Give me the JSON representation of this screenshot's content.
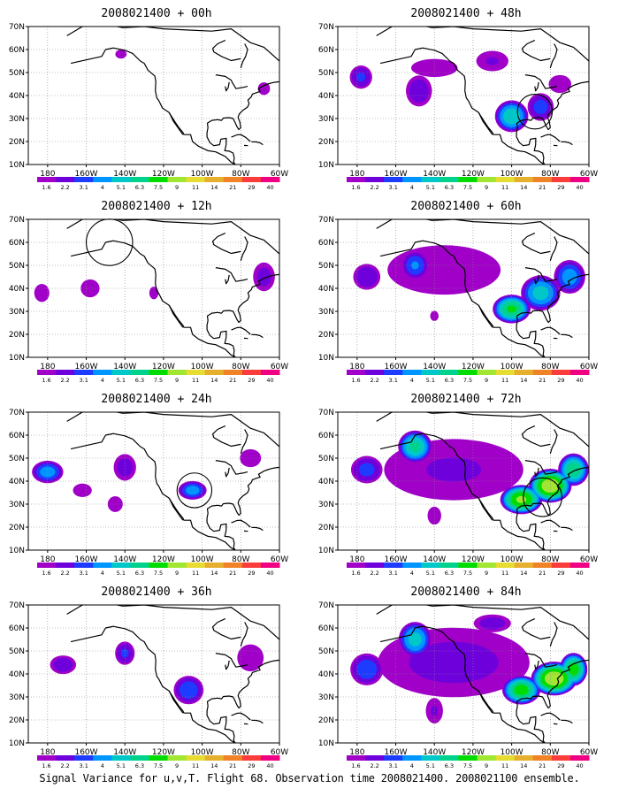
{
  "figure": {
    "caption": "Signal Variance for u,v,T. Flight 68. Observation time 2008021400. 2008021100 ensemble."
  },
  "colorbar": {
    "labels": [
      "1.6",
      "2.2",
      "3.1",
      "4",
      "5.1",
      "6.3",
      "7.5",
      "9",
      "11",
      "14",
      "21",
      "29",
      "40"
    ],
    "colors": [
      "#a000c8",
      "#6e00dc",
      "#1e3cff",
      "#0096ff",
      "#00c8c8",
      "#00d28c",
      "#00dc00",
      "#a0e632",
      "#e6dc32",
      "#e6af2d",
      "#f08228",
      "#fa3c3c",
      "#f00082"
    ]
  },
  "chart_data": [
    {
      "type": "heatmap",
      "title": "2008021400 + 00h",
      "x_ticks": [
        "180",
        "160W",
        "140W",
        "120W",
        "100W",
        "80W",
        "60W"
      ],
      "y_ticks": [
        "10N",
        "20N",
        "30N",
        "40N",
        "50N",
        "60N",
        "70N"
      ],
      "xlim": [
        -190,
        -60
      ],
      "ylim": [
        10,
        70
      ],
      "grid": true,
      "blobs": [
        {
          "lon": -145,
          "lat": 40,
          "rx": 18,
          "ry": 7,
          "v": 1.0
        },
        {
          "lon": -183,
          "lat": 35,
          "rx": 7,
          "ry": 5,
          "v": 1.0
        },
        {
          "lon": -142,
          "lat": 58,
          "rx": 6,
          "ry": 4,
          "v": 2.0
        },
        {
          "lon": -127,
          "lat": 56,
          "rx": 4,
          "ry": 3,
          "v": 1.0
        },
        {
          "lon": -68,
          "lat": 43,
          "rx": 8,
          "ry": 7,
          "v": 1.8
        }
      ],
      "circles": []
    },
    {
      "type": "heatmap",
      "title": "2008021400 + 12h",
      "x_ticks": [
        "180",
        "160W",
        "140W",
        "120W",
        "100W",
        "80W",
        "60W"
      ],
      "y_ticks": [
        "10N",
        "20N",
        "30N",
        "40N",
        "50N",
        "60N",
        "70N"
      ],
      "xlim": [
        -190,
        -60
      ],
      "ylim": [
        10,
        70
      ],
      "grid": true,
      "blobs": [
        {
          "lon": -183,
          "lat": 38,
          "rx": 8,
          "ry": 8,
          "v": 2.0
        },
        {
          "lon": -158,
          "lat": 40,
          "rx": 10,
          "ry": 8,
          "v": 2.0
        },
        {
          "lon": -125,
          "lat": 38,
          "rx": 6,
          "ry": 7,
          "v": 1.8
        },
        {
          "lon": -143,
          "lat": 57,
          "rx": 10,
          "ry": 6,
          "v": 1.0
        },
        {
          "lon": -68,
          "lat": 45,
          "rx": 9,
          "ry": 10,
          "v": 2.5
        },
        {
          "lon": -158,
          "lat": 30,
          "rx": 3,
          "ry": 2,
          "v": 1.0
        }
      ],
      "circles": [
        {
          "lon": -148,
          "lat": 60,
          "r": 12
        }
      ]
    },
    {
      "type": "heatmap",
      "title": "2008021400 + 24h",
      "x_ticks": [
        "180",
        "160W",
        "140W",
        "120W",
        "100W",
        "80W",
        "60W"
      ],
      "y_ticks": [
        "10N",
        "20N",
        "30N",
        "40N",
        "50N",
        "60N",
        "70N"
      ],
      "xlim": [
        -190,
        -60
      ],
      "ylim": [
        10,
        70
      ],
      "grid": true,
      "blobs": [
        {
          "lon": -180,
          "lat": 44,
          "rx": 10,
          "ry": 6,
          "v": 4.5
        },
        {
          "lon": -162,
          "lat": 36,
          "rx": 10,
          "ry": 6,
          "v": 2.0
        },
        {
          "lon": -140,
          "lat": 46,
          "rx": 9,
          "ry": 9,
          "v": 2.6
        },
        {
          "lon": -145,
          "lat": 30,
          "rx": 8,
          "ry": 7,
          "v": 2.0
        },
        {
          "lon": -105,
          "lat": 36,
          "rx": 9,
          "ry": 5,
          "v": 4.5
        },
        {
          "lon": -75,
          "lat": 50,
          "rx": 14,
          "ry": 10,
          "v": 1.8
        },
        {
          "lon": -115,
          "lat": 58,
          "rx": 4,
          "ry": 3,
          "v": 1.0
        }
      ],
      "circles": [
        {
          "lon": -104,
          "lat": 36,
          "r": 9
        }
      ]
    },
    {
      "type": "heatmap",
      "title": "2008021400 + 36h",
      "x_ticks": [
        "180",
        "160W",
        "140W",
        "120W",
        "100W",
        "80W",
        "60W"
      ],
      "y_ticks": [
        "10N",
        "20N",
        "30N",
        "40N",
        "50N",
        "60N",
        "70N"
      ],
      "xlim": [
        -190,
        -60
      ],
      "ylim": [
        10,
        70
      ],
      "grid": true,
      "blobs": [
        {
          "lon": -150,
          "lat": 50,
          "rx": 55,
          "ry": 22,
          "v": 1.4
        },
        {
          "lon": -172,
          "lat": 44,
          "rx": 10,
          "ry": 6,
          "v": 2.8
        },
        {
          "lon": -140,
          "lat": 49,
          "rx": 7,
          "ry": 7,
          "v": 3.2
        },
        {
          "lon": -107,
          "lat": 33,
          "rx": 10,
          "ry": 8,
          "v": 3.8
        },
        {
          "lon": -148,
          "lat": 28,
          "rx": 7,
          "ry": 10,
          "v": 1.5
        },
        {
          "lon": -75,
          "lat": 47,
          "rx": 14,
          "ry": 12,
          "v": 2.0
        }
      ],
      "circles": []
    },
    {
      "type": "heatmap",
      "title": "2008021400 + 48h",
      "x_ticks": [
        "180",
        "160W",
        "140W",
        "120W",
        "100W",
        "80W",
        "60W"
      ],
      "y_ticks": [
        "10N",
        "20N",
        "30N",
        "40N",
        "50N",
        "60N",
        "70N"
      ],
      "xlim": [
        -190,
        -60
      ],
      "ylim": [
        10,
        70
      ],
      "grid": true,
      "blobs": [
        {
          "lon": -140,
          "lat": 52,
          "rx": 55,
          "ry": 18,
          "v": 1.6
        },
        {
          "lon": -178,
          "lat": 48,
          "rx": 8,
          "ry": 7,
          "v": 3.2
        },
        {
          "lon": -148,
          "lat": 42,
          "rx": 10,
          "ry": 10,
          "v": 2.8
        },
        {
          "lon": -100,
          "lat": 31,
          "rx": 10,
          "ry": 8,
          "v": 6.0
        },
        {
          "lon": -85,
          "lat": 35,
          "rx": 9,
          "ry": 8,
          "v": 3.5
        },
        {
          "lon": -110,
          "lat": 55,
          "rx": 15,
          "ry": 8,
          "v": 2.2
        },
        {
          "lon": -75,
          "lat": 45,
          "rx": 12,
          "ry": 8,
          "v": 2.0
        },
        {
          "lon": -140,
          "lat": 28,
          "rx": 10,
          "ry": 7,
          "v": 1.5
        }
      ],
      "circles": [
        {
          "lon": -88,
          "lat": 33,
          "r": 9
        }
      ]
    },
    {
      "type": "heatmap",
      "title": "2008021400 + 60h",
      "x_ticks": [
        "180",
        "160W",
        "140W",
        "120W",
        "100W",
        "80W",
        "60W"
      ],
      "y_ticks": [
        "10N",
        "20N",
        "30N",
        "40N",
        "50N",
        "60N",
        "70N"
      ],
      "xlim": [
        -190,
        -60
      ],
      "ylim": [
        10,
        70
      ],
      "grid": true,
      "blobs": [
        {
          "lon": -135,
          "lat": 48,
          "rx": 60,
          "ry": 22,
          "v": 2.0
        },
        {
          "lon": -150,
          "lat": 50,
          "rx": 9,
          "ry": 8,
          "v": 4.0
        },
        {
          "lon": -175,
          "lat": 45,
          "rx": 10,
          "ry": 8,
          "v": 3.0
        },
        {
          "lon": -100,
          "lat": 31,
          "rx": 11,
          "ry": 7,
          "v": 7.5
        },
        {
          "lon": -85,
          "lat": 38,
          "rx": 12,
          "ry": 9,
          "v": 5.5
        },
        {
          "lon": -70,
          "lat": 45,
          "rx": 10,
          "ry": 9,
          "v": 4.5
        },
        {
          "lon": -140,
          "lat": 28,
          "rx": 10,
          "ry": 10,
          "v": 1.6
        }
      ],
      "circles": []
    },
    {
      "type": "heatmap",
      "title": "2008021400 + 72h",
      "x_ticks": [
        "180",
        "160W",
        "140W",
        "120W",
        "100W",
        "80W",
        "60W"
      ],
      "y_ticks": [
        "10N",
        "20N",
        "30N",
        "40N",
        "50N",
        "60N",
        "70N"
      ],
      "xlim": [
        -190,
        -60
      ],
      "ylim": [
        10,
        70
      ],
      "grid": true,
      "blobs": [
        {
          "lon": -130,
          "lat": 45,
          "rx": 65,
          "ry": 24,
          "v": 2.2
        },
        {
          "lon": -150,
          "lat": 55,
          "rx": 10,
          "ry": 8,
          "v": 6.5
        },
        {
          "lon": -175,
          "lat": 45,
          "rx": 11,
          "ry": 8,
          "v": 3.4
        },
        {
          "lon": -95,
          "lat": 32,
          "rx": 12,
          "ry": 7,
          "v": 9.0
        },
        {
          "lon": -80,
          "lat": 38,
          "rx": 12,
          "ry": 8,
          "v": 10.0
        },
        {
          "lon": -68,
          "lat": 45,
          "rx": 9,
          "ry": 8,
          "v": 7.0
        },
        {
          "lon": -140,
          "lat": 25,
          "rx": 9,
          "ry": 10,
          "v": 1.8
        }
      ],
      "circles": [
        {
          "lon": -84,
          "lat": 33,
          "r": 10
        }
      ]
    },
    {
      "type": "heatmap",
      "title": "2008021400 + 84h",
      "x_ticks": [
        "180",
        "160W",
        "140W",
        "120W",
        "100W",
        "80W",
        "60W"
      ],
      "y_ticks": [
        "10N",
        "20N",
        "30N",
        "40N",
        "50N",
        "60N",
        "70N"
      ],
      "xlim": [
        -190,
        -60
      ],
      "ylim": [
        10,
        70
      ],
      "grid": true,
      "blobs": [
        {
          "lon": -130,
          "lat": 45,
          "rx": 65,
          "ry": 25,
          "v": 2.4
        },
        {
          "lon": -150,
          "lat": 55,
          "rx": 10,
          "ry": 9,
          "v": 5.5
        },
        {
          "lon": -175,
          "lat": 42,
          "rx": 11,
          "ry": 9,
          "v": 3.8
        },
        {
          "lon": -95,
          "lat": 33,
          "rx": 11,
          "ry": 7,
          "v": 8.0
        },
        {
          "lon": -78,
          "lat": 38,
          "rx": 13,
          "ry": 8,
          "v": 10.0
        },
        {
          "lon": -68,
          "lat": 42,
          "rx": 8,
          "ry": 8,
          "v": 8.0
        },
        {
          "lon": -140,
          "lat": 24,
          "rx": 8,
          "ry": 10,
          "v": 2.2
        },
        {
          "lon": -110,
          "lat": 62,
          "rx": 15,
          "ry": 6,
          "v": 2.6
        }
      ],
      "circles": []
    }
  ]
}
